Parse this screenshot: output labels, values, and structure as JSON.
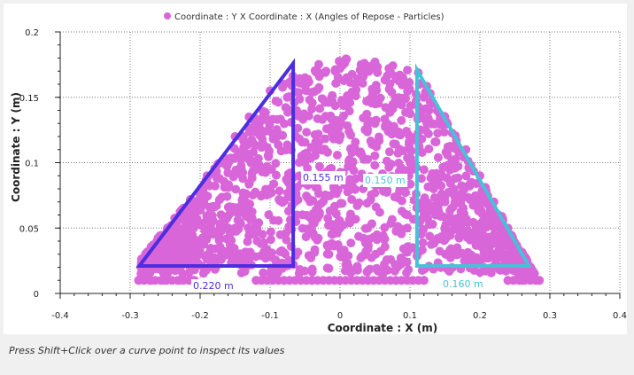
{
  "chart_data": {
    "type": "scatter",
    "title": "Coordinate : Y X Coordinate : X (Angles of Repose - Particles)",
    "legend": {
      "label": "Coordinate : Y X Coordinate : X (Angles of Repose - Particles)",
      "placement": "top-center"
    },
    "xlabel": "Coordinate : X (m)",
    "ylabel": "Coordinate : Y (m)",
    "xlim": [
      -0.4,
      0.4
    ],
    "ylim": [
      0,
      0.2
    ],
    "xticks": [
      "-0.4",
      "-0.3",
      "-0.2",
      "-0.1",
      "0",
      "0.1",
      "0.2",
      "0.3",
      "0.4"
    ],
    "yticks": [
      "0",
      "0.05",
      "0.1",
      "0.15",
      "0.2"
    ],
    "grid": true,
    "series": [
      {
        "name": "Particles",
        "color": "#d966d9",
        "description_points": [
          [
            -0.288,
            0.01
          ],
          [
            -0.27,
            0.01
          ],
          [
            -0.25,
            0.01
          ],
          [
            -0.23,
            0.01
          ],
          [
            -0.21,
            0.01
          ],
          [
            -0.12,
            0.01
          ],
          [
            -0.08,
            0.01
          ],
          [
            -0.04,
            0.01
          ],
          [
            0.0,
            0.01
          ],
          [
            0.04,
            0.01
          ],
          [
            0.08,
            0.01
          ],
          [
            0.12,
            0.01
          ],
          [
            0.24,
            0.01
          ],
          [
            0.26,
            0.01
          ],
          [
            0.285,
            0.01
          ],
          [
            -0.27,
            0.025
          ],
          [
            -0.25,
            0.03
          ],
          [
            -0.23,
            0.045
          ],
          [
            -0.21,
            0.06
          ],
          [
            -0.2,
            0.075
          ],
          [
            -0.19,
            0.09
          ],
          [
            -0.17,
            0.1
          ],
          [
            -0.15,
            0.12
          ],
          [
            -0.13,
            0.135
          ],
          [
            -0.1,
            0.155
          ],
          [
            -0.08,
            0.16
          ],
          [
            -0.05,
            0.165
          ],
          [
            -0.02,
            0.17
          ],
          [
            0.0,
            0.172
          ],
          [
            0.03,
            0.175
          ],
          [
            0.05,
            0.177
          ],
          [
            0.07,
            0.172
          ],
          [
            0.09,
            0.165
          ],
          [
            0.12,
            0.15
          ],
          [
            0.15,
            0.135
          ],
          [
            0.18,
            0.11
          ],
          [
            0.2,
            0.09
          ],
          [
            0.22,
            0.07
          ],
          [
            0.24,
            0.05
          ],
          [
            0.26,
            0.03
          ],
          [
            -0.15,
            0.05
          ],
          [
            -0.1,
            0.08
          ],
          [
            -0.05,
            0.1
          ],
          [
            0.0,
            0.12
          ],
          [
            0.05,
            0.13
          ],
          [
            0.1,
            0.1
          ],
          [
            0.15,
            0.07
          ],
          [
            0.2,
            0.04
          ],
          [
            -0.2,
            0.03
          ],
          [
            0.0,
            0.05
          ]
        ]
      }
    ],
    "annotations": [
      {
        "type": "triangle",
        "color": "#4b2ee0",
        "label": "0.155 m",
        "label2": "0.220 m",
        "vertices": [
          [
            -0.287,
            0.021
          ],
          [
            -0.067,
            0.021
          ],
          [
            -0.067,
            0.176
          ]
        ]
      },
      {
        "type": "triangle",
        "color": "#47c1d6",
        "label": "0.150 m",
        "label2": "0.160 m",
        "vertices": [
          [
            0.11,
            0.021
          ],
          [
            0.27,
            0.021
          ],
          [
            0.11,
            0.171
          ]
        ]
      }
    ]
  },
  "status": {
    "text": "Press Shift+Click over a curve point to inspect its values"
  }
}
